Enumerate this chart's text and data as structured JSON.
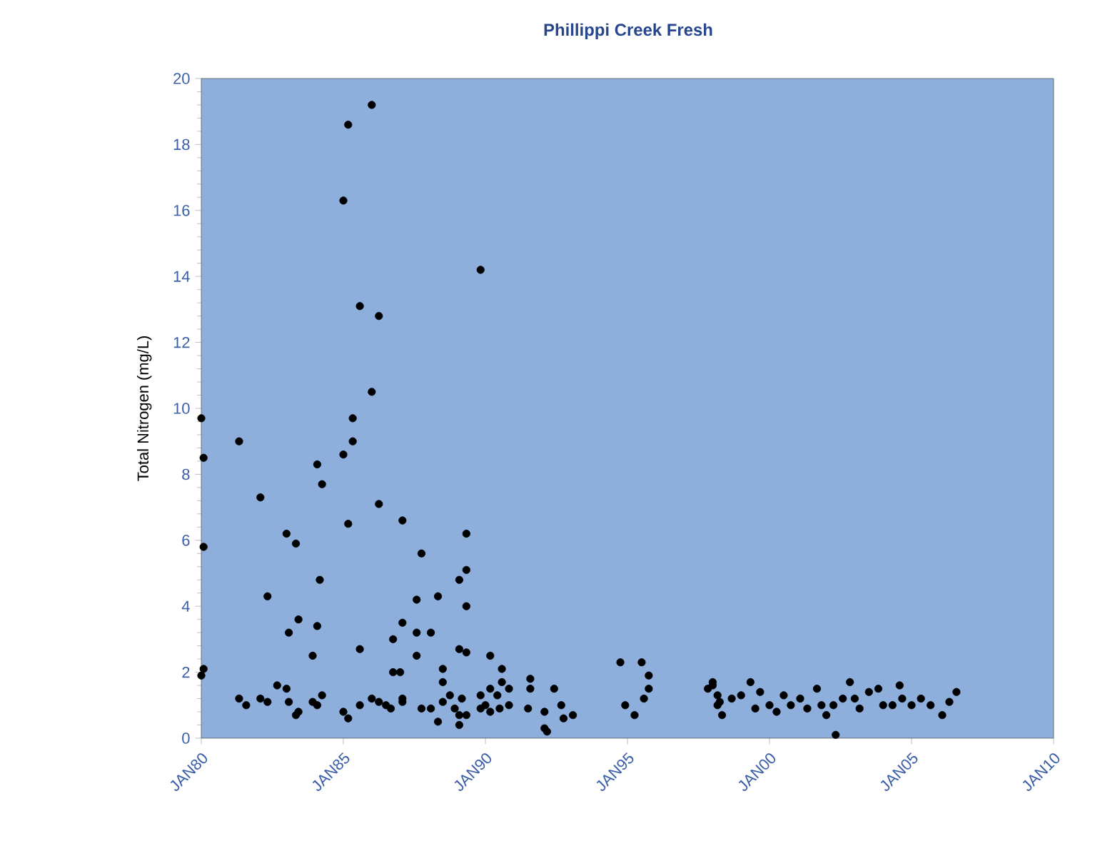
{
  "chart_data": {
    "type": "scatter",
    "title": "Phillippi Creek Fresh",
    "ylabel": "Total Nitrogen  (mg/L)",
    "marker": "circle",
    "color": "#000000",
    "xlim": [
      "1980-01",
      "2010-01"
    ],
    "ylim": [
      0,
      20
    ],
    "xticks": [
      {
        "value": "1980-01",
        "label": "JAN80"
      },
      {
        "value": "1985-01",
        "label": "JAN85"
      },
      {
        "value": "1990-01",
        "label": "JAN90"
      },
      {
        "value": "1995-01",
        "label": "JAN95"
      },
      {
        "value": "2000-01",
        "label": "JAN00"
      },
      {
        "value": "2005-01",
        "label": "JAN05"
      },
      {
        "value": "2010-01",
        "label": "JAN10"
      }
    ],
    "yticks": [
      0,
      2,
      4,
      6,
      8,
      10,
      12,
      14,
      16,
      18,
      20
    ],
    "x": [
      "1986-01",
      "1985-03",
      "1985-01",
      "1989-11",
      "1985-08",
      "1986-04",
      "1986-01",
      "1980-01",
      "1985-05",
      "1981-05",
      "1985-05",
      "1980-02",
      "1985-01",
      "1984-02",
      "1984-04",
      "1982-02",
      "1986-04",
      "1987-02",
      "1983-01",
      "1983-05",
      "1985-03",
      "1980-02",
      "1987-10",
      "1989-05",
      "1989-05",
      "1989-02",
      "1989-05",
      "1984-03",
      "1982-05",
      "1987-08",
      "1988-05",
      "1983-06",
      "1983-02",
      "1984-02",
      "1987-02",
      "1986-10",
      "1987-08",
      "1988-02",
      "1983-12",
      "1985-08",
      "1987-08",
      "1989-02",
      "1989-05",
      "1990-03",
      "1988-07",
      "1988-07",
      "1980-01",
      "1980-02",
      "1986-10",
      "1987-01",
      "1981-05",
      "1981-08",
      "1982-02",
      "1982-05",
      "1982-09",
      "1983-01",
      "1983-02",
      "1983-05",
      "1983-06",
      "1983-12",
      "1984-02",
      "1984-04",
      "1985-01",
      "1985-03",
      "1985-08",
      "1986-01",
      "1986-04",
      "1986-07",
      "1986-09",
      "1987-02",
      "1987-02",
      "1987-10",
      "1988-02",
      "1988-05",
      "1988-07",
      "1988-10",
      "1988-12",
      "1989-02",
      "1989-02",
      "1989-05",
      "1989-03",
      "1990-08",
      "1990-08",
      "1990-03",
      "1990-06",
      "1990-11",
      "1990-01",
      "1990-07",
      "1990-11",
      "1990-03",
      "1989-11",
      "1989-11",
      "1991-08",
      "1991-08",
      "1991-07",
      "1992-06",
      "1992-02",
      "1992-09",
      "1992-02",
      "1992-03",
      "1993-02",
      "1992-10",
      "1994-10",
      "1995-07",
      "1995-10",
      "1995-10",
      "1995-08",
      "1994-12",
      "1995-04",
      "1998-01",
      "1998-03",
      "1998-03",
      "1998-05",
      "1998-01",
      "1997-11",
      "1998-04",
      "1998-09",
      "1999-01",
      "1999-05",
      "1999-07",
      "1999-09",
      "2000-01",
      "2000-04",
      "2000-07",
      "2000-10",
      "2001-02",
      "2001-05",
      "2001-09",
      "2001-11",
      "2002-01",
      "2002-05",
      "2002-04",
      "2002-08",
      "2002-11",
      "2003-01",
      "2003-03",
      "2003-07",
      "2003-11",
      "2004-01",
      "2004-05",
      "2004-08",
      "2004-09",
      "2005-01",
      "2005-05",
      "2005-09",
      "2006-02",
      "2006-05",
      "2006-08"
    ],
    "values": [
      19.2,
      18.6,
      16.3,
      14.2,
      13.1,
      12.8,
      10.5,
      9.7,
      9.7,
      9.0,
      9.0,
      8.5,
      8.6,
      8.3,
      7.7,
      7.3,
      7.1,
      6.6,
      6.2,
      5.9,
      6.5,
      5.8,
      5.6,
      6.2,
      5.1,
      4.8,
      4.0,
      4.8,
      4.3,
      4.2,
      4.3,
      3.6,
      3.2,
      3.4,
      3.5,
      3.0,
      3.2,
      3.2,
      2.5,
      2.7,
      2.5,
      2.7,
      2.6,
      2.5,
      2.1,
      1.7,
      1.9,
      2.1,
      2.0,
      2.0,
      1.2,
      1.0,
      1.2,
      1.1,
      1.6,
      1.5,
      1.1,
      0.7,
      0.8,
      1.1,
      1.0,
      1.3,
      0.8,
      0.6,
      1.0,
      1.2,
      1.1,
      1.0,
      0.9,
      1.2,
      1.1,
      0.9,
      0.9,
      0.5,
      1.1,
      1.3,
      0.9,
      0.7,
      0.4,
      0.7,
      1.2,
      2.1,
      1.7,
      1.5,
      1.3,
      1.5,
      1.0,
      0.9,
      1.0,
      0.8,
      1.3,
      0.9,
      1.8,
      1.5,
      0.9,
      1.5,
      0.8,
      1.0,
      0.3,
      0.2,
      0.7,
      0.6,
      2.3,
      2.3,
      1.9,
      1.5,
      1.2,
      1.0,
      0.7,
      1.6,
      1.3,
      1.0,
      0.7,
      1.7,
      1.5,
      1.1,
      1.2,
      1.3,
      1.7,
      0.9,
      1.4,
      1.0,
      0.8,
      1.3,
      1.0,
      1.2,
      0.9,
      1.5,
      1.0,
      0.7,
      0.1,
      1.0,
      1.2,
      1.7,
      1.2,
      0.9,
      1.4,
      1.5,
      1.0,
      1.0,
      1.6,
      1.2,
      1.0,
      1.2,
      1.0,
      0.7,
      1.1,
      1.4
    ]
  }
}
